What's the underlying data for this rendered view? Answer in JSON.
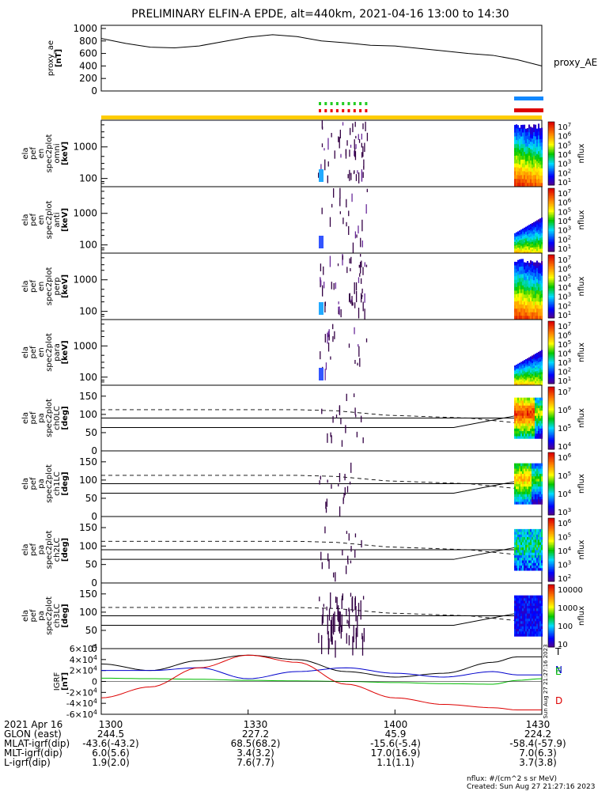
{
  "title": "PRELIMINARY ELFIN-A EPDE, alt=440km, 2021-04-16 13:00 to 14:30",
  "chart_data": {
    "type": "line",
    "time_range": [
      "13:00",
      "14:30"
    ],
    "panels": [
      {
        "id": "proxy_ae",
        "ylabel": [
          "proxy_ae",
          "[nT]"
        ],
        "yticks": [
          "1000",
          "800",
          "600",
          "400",
          "200",
          "0"
        ],
        "ylim": [
          0,
          1050
        ],
        "series": [
          {
            "name": "proxy_AE",
            "x_minutes": [
              0,
              5,
              10,
              15,
              20,
              25,
              30,
              35,
              40,
              45,
              50,
              55,
              60,
              65,
              70,
              75,
              80,
              85,
              90
            ],
            "values": [
              840,
              760,
              700,
              690,
              720,
              790,
              860,
              900,
              870,
              800,
              770,
              730,
              720,
              680,
              640,
              600,
              570,
              500,
              400
            ]
          }
        ]
      },
      {
        "id": "en_omni",
        "ylabel": [
          "ela",
          "pef",
          "en",
          "spec2plot",
          "omni",
          "[keV]"
        ],
        "yticks": [
          "1000",
          "100"
        ],
        "colorbar": {
          "label": "nflux",
          "ticks": [
            "10^7",
            "10^6",
            "10^5",
            "10^4",
            "10^3",
            "10^2",
            "10^1"
          ]
        }
      },
      {
        "id": "en_anti",
        "ylabel": [
          "ela",
          "pef",
          "en",
          "spec2plot",
          "anti",
          "[keV]"
        ],
        "yticks": [
          "1000",
          "100"
        ],
        "colorbar": {
          "label": "nflux",
          "ticks": [
            "10^7",
            "10^6",
            "10^5",
            "10^4",
            "10^3",
            "10^2",
            "10^1"
          ]
        }
      },
      {
        "id": "en_perp",
        "ylabel": [
          "ela",
          "pef",
          "en",
          "spec2plot",
          "perp",
          "[keV]"
        ],
        "yticks": [
          "1000",
          "100"
        ],
        "colorbar": {
          "label": "nflux",
          "ticks": [
            "10^7",
            "10^6",
            "10^5",
            "10^4",
            "10^3",
            "10^2",
            "10^1"
          ]
        }
      },
      {
        "id": "en_para",
        "ylabel": [
          "ela",
          "pef",
          "en",
          "spec2plot",
          "para",
          "[keV]"
        ],
        "yticks": [
          "1000",
          "100"
        ],
        "colorbar": {
          "label": "nflux",
          "ticks": [
            "10^7",
            "10^6",
            "10^5",
            "10^4",
            "10^3",
            "10^2",
            "10^1"
          ]
        }
      },
      {
        "id": "pa_ch0",
        "ylabel": [
          "ela",
          "pef",
          "pa",
          "spec2plot",
          "ch0LC",
          "[deg]"
        ],
        "yticks": [
          "150",
          "100",
          "50",
          "0"
        ],
        "colorbar": {
          "label": "nflux",
          "ticks": [
            "10^7",
            "10^6",
            "10^5",
            "10^4"
          ]
        }
      },
      {
        "id": "pa_ch1",
        "ylabel": [
          "ela",
          "pef",
          "pa",
          "spec2plot",
          "ch1LC",
          "[deg]"
        ],
        "yticks": [
          "150",
          "100",
          "50",
          "0"
        ],
        "colorbar": {
          "label": "nflux",
          "ticks": [
            "10^6",
            "10^5",
            "10^4",
            "10^3"
          ]
        }
      },
      {
        "id": "pa_ch2",
        "ylabel": [
          "ela",
          "pef",
          "pa",
          "spec2plot",
          "ch2LC",
          "[deg]"
        ],
        "yticks": [
          "150",
          "100",
          "50",
          "0"
        ],
        "colorbar": {
          "label": "nflux",
          "ticks": [
            "10^6",
            "10^5",
            "10^4",
            "10^3",
            "10^2"
          ]
        }
      },
      {
        "id": "pa_ch3",
        "ylabel": [
          "ela",
          "pef",
          "pa",
          "spec2plot",
          "ch3LC",
          "[deg]"
        ],
        "yticks": [
          "150",
          "100",
          "50",
          "0"
        ],
        "colorbar": {
          "label": "nflux",
          "ticks": [
            "10000",
            "1000",
            "100",
            "10"
          ]
        }
      },
      {
        "id": "igrf",
        "ylabel": [
          "IGRF",
          "[nT]"
        ],
        "yticks": [
          "6x10^4",
          "4x10^4",
          "2x10^4",
          "0",
          "-2x10^4",
          "-4x10^4",
          "-6x10^4"
        ],
        "ylim": [
          -60000,
          60000
        ],
        "series": [
          {
            "name": "T",
            "color": "#000000",
            "x_minutes": [
              0,
              10,
              20,
              30,
              40,
              50,
              60,
              70,
              80,
              85,
              90
            ],
            "values": [
              32000,
              20000,
              38000,
              48000,
              40000,
              18000,
              8000,
              15000,
              35000,
              45000,
              45000
            ]
          },
          {
            "name": "N",
            "color": "#0000cc",
            "x_minutes": [
              0,
              10,
              20,
              30,
              40,
              50,
              60,
              70,
              80,
              85,
              90
            ],
            "values": [
              20000,
              20000,
              25000,
              5000,
              18000,
              25000,
              15000,
              8000,
              18000,
              12000,
              12000
            ]
          },
          {
            "name": "E",
            "color": "#00bb00",
            "x_minutes": [
              0,
              10,
              20,
              30,
              40,
              50,
              60,
              70,
              80,
              85,
              90
            ],
            "values": [
              6000,
              5000,
              4000,
              2000,
              1000,
              0,
              -2000,
              -4000,
              -5000,
              2000,
              5000
            ]
          },
          {
            "name": "D",
            "color": "#dd0000",
            "x_minutes": [
              0,
              10,
              20,
              30,
              40,
              50,
              60,
              70,
              80,
              85,
              90
            ],
            "values": [
              -30000,
              -10000,
              25000,
              48000,
              35000,
              -5000,
              -30000,
              -42000,
              -48000,
              -52000,
              -52000
            ]
          }
        ]
      }
    ],
    "xaxis": {
      "ticks_minutes": [
        0,
        30,
        60,
        90
      ],
      "rows": [
        {
          "label": "2021 Apr 16",
          "values": [
            "1300",
            "1330",
            "1400",
            "1430"
          ]
        },
        {
          "label": "GLON (east)",
          "values": [
            "244.5",
            "227.2",
            "45.9",
            "224.2"
          ]
        },
        {
          "label": "MLAT-igrf(dip)",
          "values": [
            "-43.6(-43.2)",
            "68.5(68.2)",
            "-15.6(-5.4)",
            "-58.4(-57.9)"
          ]
        },
        {
          "label": "MLT-igrf(dip)",
          "values": [
            "6.0(5.6)",
            "3.4(3.2)",
            "17.0(16.9)",
            "7.0(6.3)"
          ]
        },
        {
          "label": "L-igrf(dip)",
          "values": [
            "1.9(2.0)",
            "7.6(7.7)",
            "1.1(1.1)",
            "3.7(3.8)"
          ]
        }
      ]
    }
  },
  "legend_label": "proxy_AE",
  "igrf_labels": [
    "T",
    "N",
    "E",
    "D"
  ],
  "footer_units": "nflux: #/(cm^2 s sr MeV)",
  "footer_created": "Created: Sun Aug 27 21:27:16 2023",
  "side_created": "Sun Aug 27 21:27:16 2023"
}
